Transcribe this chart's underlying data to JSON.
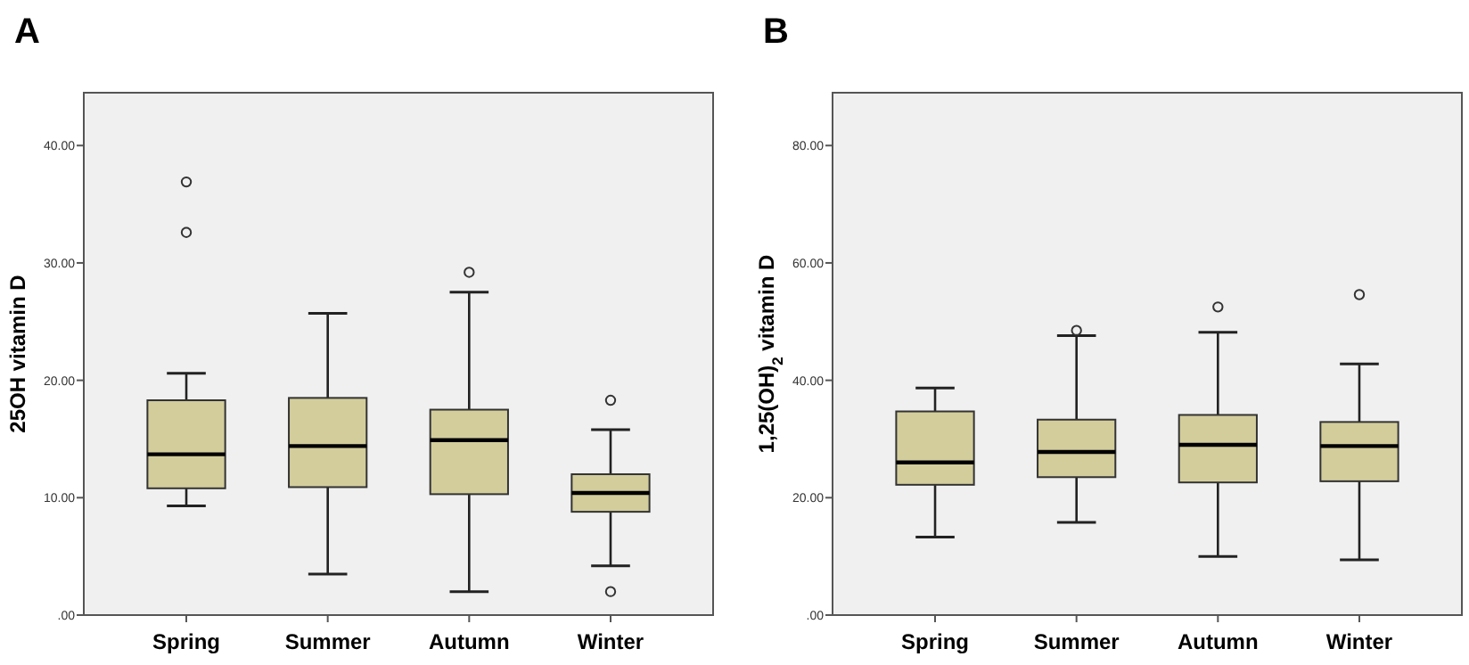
{
  "chart_data": [
    {
      "type": "box",
      "title": "A",
      "ylabel": "25OH vitamin D",
      "categories": [
        "Spring",
        "Summer",
        "Autumn",
        "Winter"
      ],
      "color": "#d3cd9c",
      "boxes": [
        {
          "low": 9.3,
          "q1": 10.8,
          "median": 13.7,
          "q3": 18.3,
          "high": 20.6,
          "outliers": [
            36.9,
            32.6
          ]
        },
        {
          "low": 3.5,
          "q1": 10.9,
          "median": 14.4,
          "q3": 18.5,
          "high": 25.7
        },
        {
          "low": 2.0,
          "q1": 10.3,
          "median": 14.9,
          "q3": 17.5,
          "high": 27.5,
          "outliers": [
            29.2
          ]
        },
        {
          "low": 4.2,
          "q1": 8.8,
          "median": 10.4,
          "q3": 12.0,
          "high": 15.8,
          "outliers": [
            18.3,
            2.0
          ]
        }
      ],
      "ylim": [
        0,
        44.5
      ],
      "yticks": [
        {
          "value": 0,
          "label": ".00"
        },
        {
          "value": 10,
          "label": "10.00"
        },
        {
          "value": 20,
          "label": "20.00"
        },
        {
          "value": 30,
          "label": "30.00"
        },
        {
          "value": 40,
          "label": "40.00"
        }
      ]
    },
    {
      "type": "box",
      "title": "B",
      "ylabel": "1,25(OH)$_{2}$ vitamin D",
      "categories": [
        "Spring",
        "Summer",
        "Autumn",
        "Winter"
      ],
      "color": "#d3cd9c",
      "boxes": [
        {
          "low": 13.3,
          "q1": 22.2,
          "median": 26.0,
          "q3": 34.7,
          "high": 38.7
        },
        {
          "low": 15.8,
          "q1": 23.5,
          "median": 27.8,
          "q3": 33.3,
          "high": 47.6,
          "outliers": [
            48.5
          ]
        },
        {
          "low": 10.0,
          "q1": 22.6,
          "median": 29.0,
          "q3": 34.1,
          "high": 48.2,
          "outliers": [
            52.5
          ]
        },
        {
          "low": 9.4,
          "q1": 22.8,
          "median": 28.8,
          "q3": 32.9,
          "high": 42.8,
          "outliers": [
            54.6
          ]
        }
      ],
      "ylim": [
        0,
        89
      ],
      "yticks": [
        {
          "value": 0,
          "label": ".00"
        },
        {
          "value": 20,
          "label": "20.00"
        },
        {
          "value": 40,
          "label": "40.00"
        },
        {
          "value": 60,
          "label": "60.00"
        },
        {
          "value": 80,
          "label": "80.00"
        }
      ]
    }
  ]
}
